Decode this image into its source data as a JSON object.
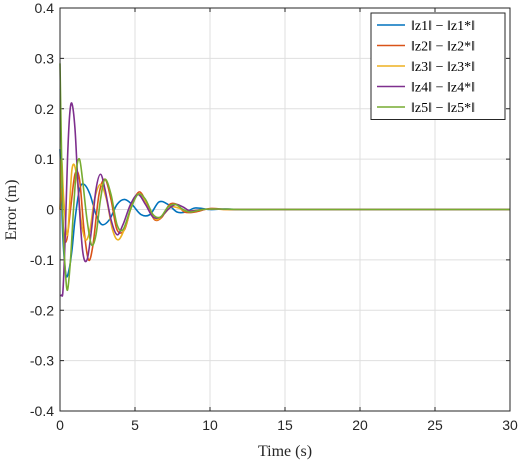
{
  "chart_data": {
    "type": "line",
    "title": "",
    "xlabel": "Time (s)",
    "ylabel": "Error (m)",
    "xlim": [
      0,
      30
    ],
    "ylim": [
      -0.4,
      0.4
    ],
    "xticks": [
      0,
      5,
      10,
      15,
      20,
      25,
      30
    ],
    "xtick_labels": [
      "0",
      "5",
      "10",
      "15",
      "20",
      "25",
      "30"
    ],
    "yticks": [
      -0.4,
      -0.3,
      -0.2,
      -0.1,
      0,
      0.1,
      0.2,
      0.3,
      0.4
    ],
    "ytick_labels": [
      "-0.4",
      "-0.3",
      "-0.2",
      "-0.1",
      "0",
      "0.1",
      "0.2",
      "0.3",
      "0.4"
    ],
    "grid": true,
    "legend_position": "top-right",
    "series": [
      {
        "name": "‖z1‖ − ‖z1*‖",
        "color": "#0072BD",
        "x": [
          0,
          0.1,
          0.2,
          0.4,
          0.6,
          0.8,
          1.0,
          1.3,
          1.6,
          2.0,
          2.4,
          2.8,
          3.3,
          3.8,
          4.3,
          4.8,
          5.4,
          6.0,
          6.6,
          7.2,
          7.8,
          8.4,
          9.0,
          10,
          11,
          12,
          14,
          30
        ],
        "y": [
          0.12,
          0.03,
          -0.06,
          -0.13,
          -0.12,
          -0.08,
          -0.02,
          0.04,
          0.05,
          0.03,
          -0.01,
          -0.03,
          -0.02,
          0.01,
          0.02,
          0.01,
          -0.01,
          -0.01,
          0.015,
          0.01,
          -0.005,
          -0.005,
          0.003,
          0.0,
          0.001,
          0,
          0,
          0
        ]
      },
      {
        "name": "‖z2‖ − ‖z2*‖",
        "color": "#D95319",
        "x": [
          0,
          0.1,
          0.25,
          0.45,
          0.7,
          1.0,
          1.3,
          1.6,
          1.9,
          2.2,
          2.6,
          3.0,
          3.4,
          3.8,
          4.3,
          4.8,
          5.3,
          5.8,
          6.3,
          6.8,
          7.3,
          7.8,
          8.3,
          9.0,
          10,
          11,
          12,
          14,
          30
        ],
        "y": [
          0.0,
          0.04,
          -0.05,
          -0.06,
          0.0,
          0.07,
          0.06,
          -0.04,
          -0.1,
          -0.07,
          0.03,
          0.06,
          0.02,
          -0.04,
          -0.04,
          0.01,
          0.035,
          0.01,
          -0.02,
          -0.015,
          0.01,
          0.01,
          -0.005,
          -0.005,
          0.002,
          0.0,
          0,
          0,
          0
        ]
      },
      {
        "name": "‖z3‖ − ‖z3*‖",
        "color": "#EDB120",
        "x": [
          0,
          0.1,
          0.25,
          0.5,
          0.8,
          1.1,
          1.4,
          1.7,
          2.0,
          2.3,
          2.7,
          3.1,
          3.5,
          3.9,
          4.4,
          4.9,
          5.4,
          5.9,
          6.4,
          6.9,
          7.4,
          7.9,
          8.4,
          9.0,
          10,
          11,
          12,
          14,
          30
        ],
        "y": [
          0.0,
          0.1,
          0.02,
          -0.05,
          0.08,
          0.07,
          -0.02,
          -0.06,
          -0.04,
          0.02,
          0.05,
          0.02,
          -0.04,
          -0.06,
          -0.03,
          0.02,
          0.03,
          0.0,
          -0.02,
          -0.01,
          0.005,
          0.003,
          -0.003,
          -0.002,
          0.001,
          0,
          0,
          0,
          0
        ]
      },
      {
        "name": "‖z4‖ − ‖z4*‖",
        "color": "#7E2F8E",
        "x": [
          0,
          0.1,
          0.2,
          0.35,
          0.5,
          0.65,
          0.8,
          1.0,
          1.2,
          1.5,
          1.8,
          2.1,
          2.4,
          2.7,
          3.0,
          3.4,
          3.8,
          4.2,
          4.7,
          5.2,
          5.7,
          6.2,
          6.7,
          7.2,
          7.7,
          8.2,
          8.7,
          9.5,
          10.5,
          12,
          14,
          30
        ],
        "y": [
          -0.17,
          -0.17,
          -0.16,
          -0.05,
          0.1,
          0.19,
          0.21,
          0.16,
          0.05,
          -0.08,
          -0.1,
          -0.04,
          0.04,
          0.07,
          0.04,
          -0.02,
          -0.05,
          -0.03,
          0.01,
          0.03,
          0.01,
          -0.015,
          -0.015,
          0.0,
          0.01,
          0.005,
          -0.003,
          0.0,
          0.001,
          0,
          0,
          0
        ]
      },
      {
        "name": "‖z5‖ − ‖z5*‖",
        "color": "#77AC30",
        "x": [
          0,
          0.08,
          0.2,
          0.35,
          0.5,
          0.7,
          0.9,
          1.1,
          1.3,
          1.5,
          1.8,
          2.1,
          2.4,
          2.7,
          3.0,
          3.4,
          3.8,
          4.2,
          4.7,
          5.2,
          5.7,
          6.2,
          6.7,
          7.2,
          7.7,
          8.2,
          8.7,
          9.5,
          10.5,
          12,
          14,
          30
        ],
        "y": [
          0.29,
          0.15,
          -0.03,
          -0.12,
          -0.16,
          -0.1,
          0.0,
          0.08,
          0.1,
          0.06,
          -0.02,
          -0.07,
          -0.05,
          0.02,
          0.06,
          0.03,
          -0.03,
          -0.04,
          0.0,
          0.03,
          0.02,
          -0.01,
          -0.015,
          0.005,
          0.01,
          0.0,
          -0.005,
          0.0,
          0.001,
          0,
          0,
          0
        ]
      }
    ]
  }
}
